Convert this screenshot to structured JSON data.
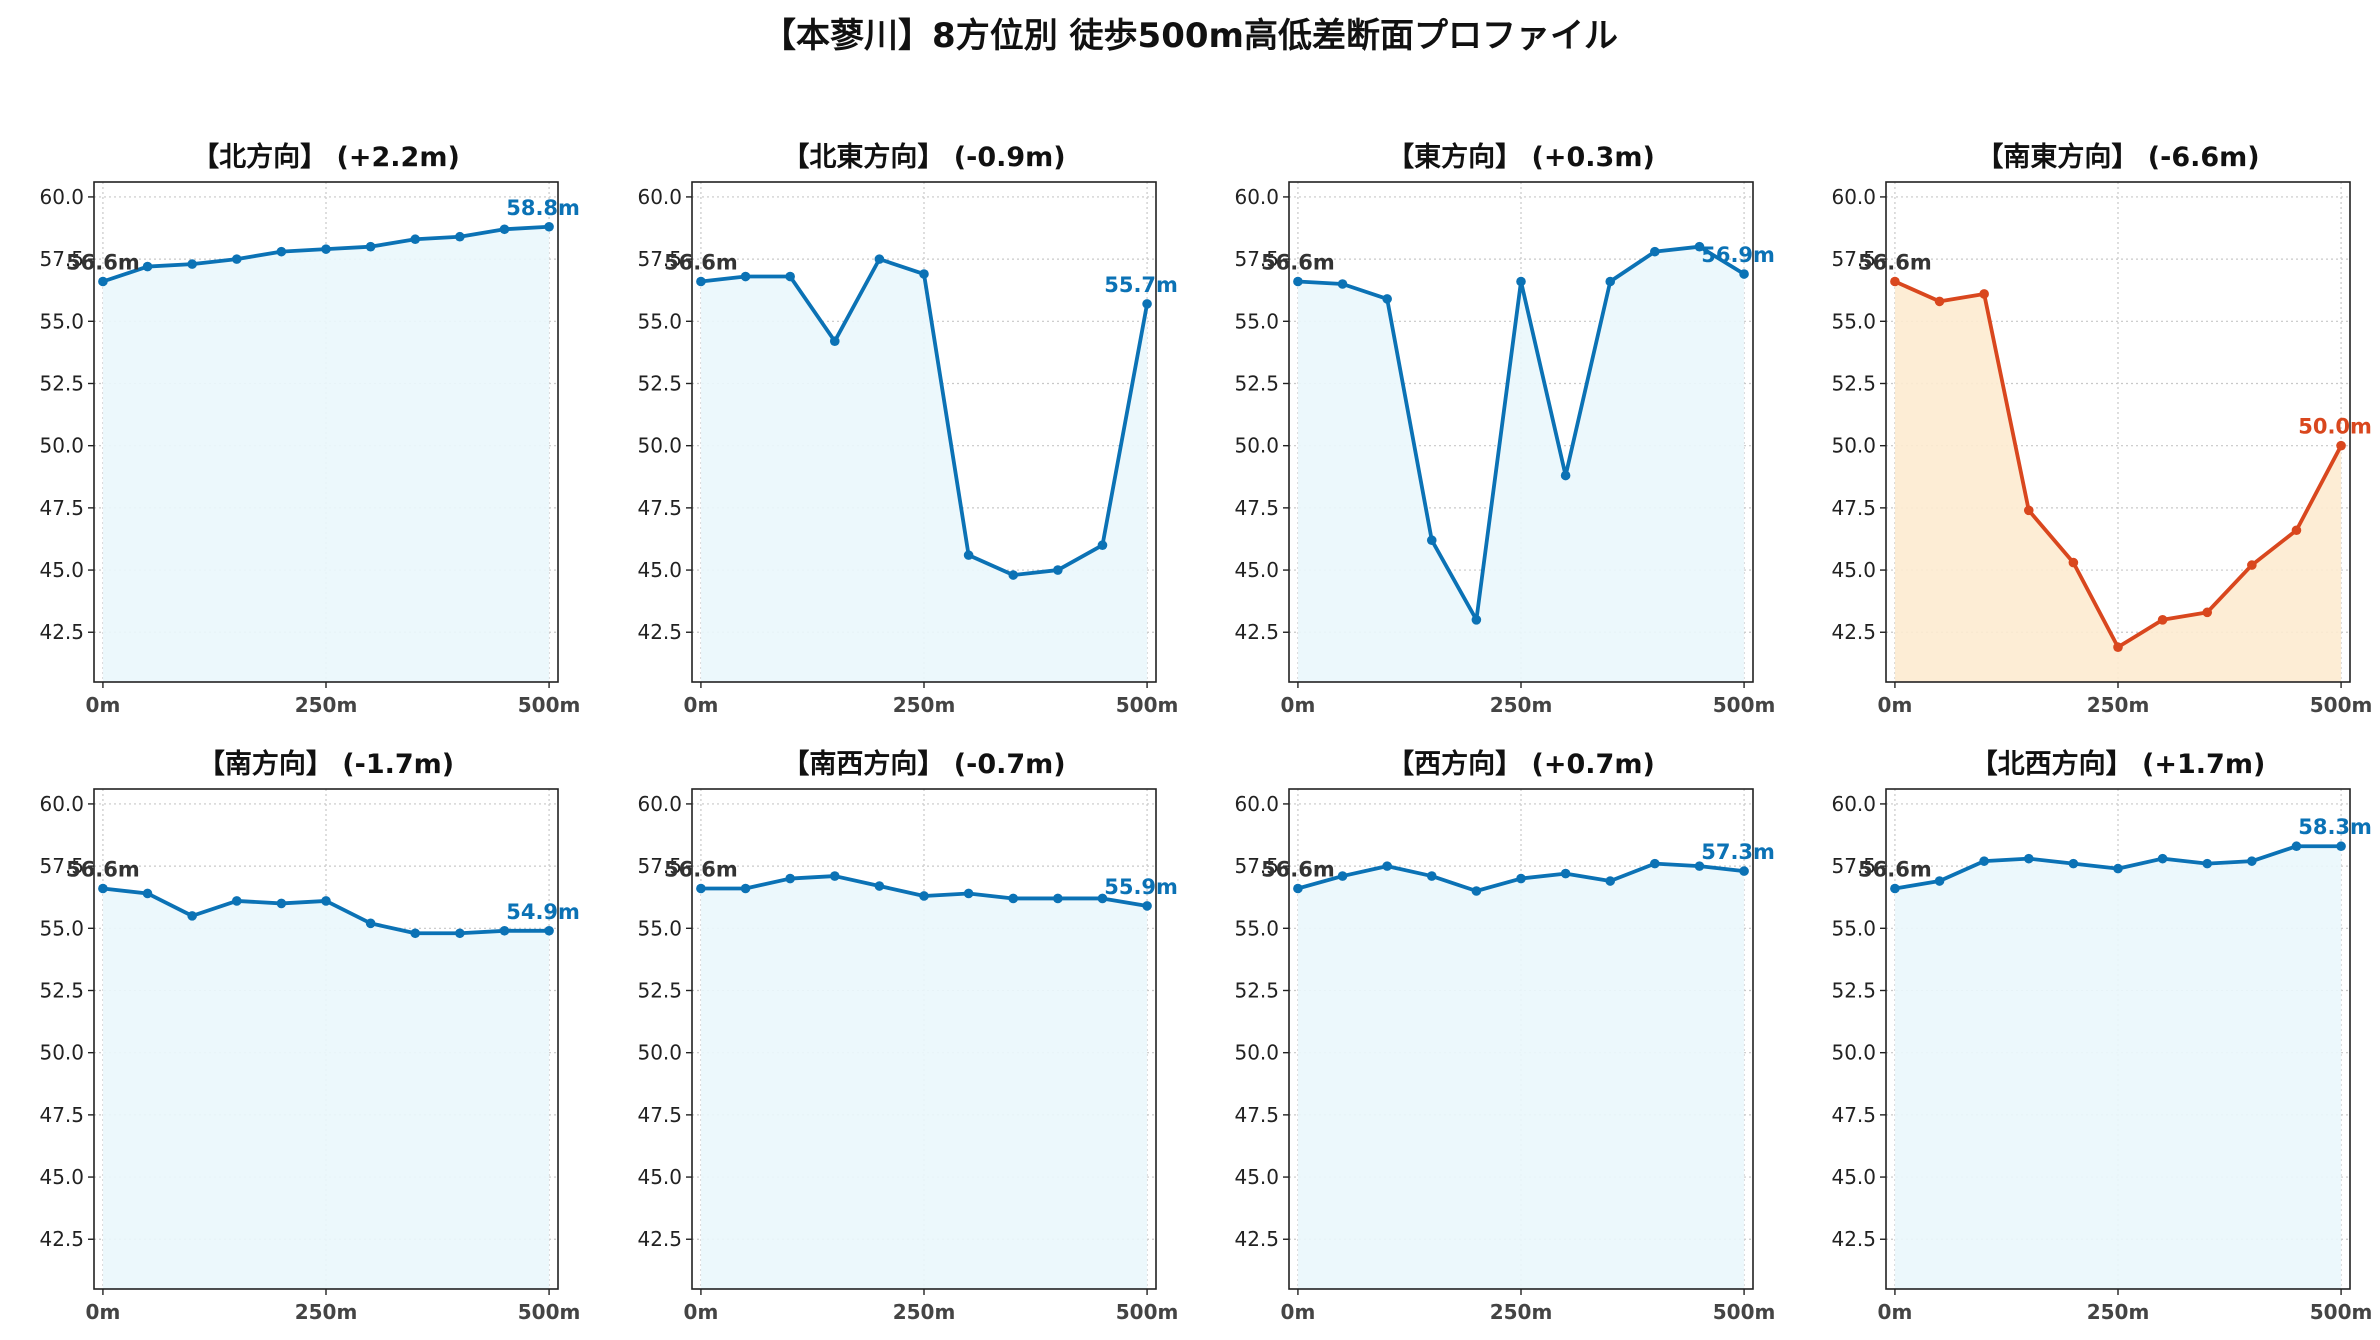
{
  "title": "【本蓼川】8方位別 徒歩500m高低差断面プロファイル",
  "colors": {
    "normal_line": "#0b72b5",
    "normal_fill": "#eaf7fc",
    "alert_line": "#d9471e",
    "alert_fill": "#fdebd0",
    "grid": "#c8c8c8"
  },
  "chart_data": [
    {
      "type": "area",
      "title": "【北方向】 (+2.2m)",
      "x": [
        0,
        50,
        100,
        150,
        200,
        250,
        300,
        350,
        400,
        450,
        500
      ],
      "y": [
        56.6,
        57.2,
        57.3,
        57.5,
        57.8,
        57.9,
        58.0,
        58.3,
        58.4,
        58.7,
        58.8
      ],
      "xticks": [
        0,
        250,
        500
      ],
      "xtick_labels": [
        "0m",
        "250m",
        "500m"
      ],
      "yticks": [
        42.5,
        45.0,
        47.5,
        50.0,
        52.5,
        55.0,
        57.5,
        60.0
      ],
      "ytick_labels": [
        "42.5",
        "45.0",
        "47.5",
        "50.0",
        "52.5",
        "55.0",
        "57.5",
        "60.0"
      ],
      "ylim": [
        40.5,
        60.6
      ],
      "xlim": [
        -10,
        510
      ],
      "start_label": "56.6m",
      "end_label": "58.8m",
      "highlight": false,
      "grid": true
    },
    {
      "type": "area",
      "title": "【北東方向】 (-0.9m)",
      "x": [
        0,
        50,
        100,
        150,
        200,
        250,
        300,
        350,
        400,
        450,
        500
      ],
      "y": [
        56.6,
        56.8,
        56.8,
        54.2,
        57.5,
        56.9,
        45.6,
        44.8,
        45.0,
        46.0,
        55.7
      ],
      "xticks": [
        0,
        250,
        500
      ],
      "xtick_labels": [
        "0m",
        "250m",
        "500m"
      ],
      "yticks": [
        42.5,
        45.0,
        47.5,
        50.0,
        52.5,
        55.0,
        57.5,
        60.0
      ],
      "ytick_labels": [
        "42.5",
        "45.0",
        "47.5",
        "50.0",
        "52.5",
        "55.0",
        "57.5",
        "60.0"
      ],
      "ylim": [
        40.5,
        60.6
      ],
      "xlim": [
        -10,
        510
      ],
      "start_label": "56.6m",
      "end_label": "55.7m",
      "highlight": false,
      "grid": true
    },
    {
      "type": "area",
      "title": "【東方向】 (+0.3m)",
      "x": [
        0,
        50,
        100,
        150,
        200,
        250,
        300,
        350,
        400,
        450,
        500
      ],
      "y": [
        56.6,
        56.5,
        55.9,
        46.2,
        43.0,
        56.6,
        48.8,
        56.6,
        57.8,
        58.0,
        56.9
      ],
      "xticks": [
        0,
        250,
        500
      ],
      "xtick_labels": [
        "0m",
        "250m",
        "500m"
      ],
      "yticks": [
        42.5,
        45.0,
        47.5,
        50.0,
        52.5,
        55.0,
        57.5,
        60.0
      ],
      "ytick_labels": [
        "42.5",
        "45.0",
        "47.5",
        "50.0",
        "52.5",
        "55.0",
        "57.5",
        "60.0"
      ],
      "ylim": [
        40.5,
        60.6
      ],
      "xlim": [
        -10,
        510
      ],
      "start_label": "56.6m",
      "end_label": "56.9m",
      "highlight": false,
      "grid": true
    },
    {
      "type": "area",
      "title": "【南東方向】 (-6.6m)",
      "x": [
        0,
        50,
        100,
        150,
        200,
        250,
        300,
        350,
        400,
        450,
        500
      ],
      "y": [
        56.6,
        55.8,
        56.1,
        47.4,
        45.3,
        41.9,
        43.0,
        43.3,
        45.2,
        46.6,
        50.0
      ],
      "xticks": [
        0,
        250,
        500
      ],
      "xtick_labels": [
        "0m",
        "250m",
        "500m"
      ],
      "yticks": [
        42.5,
        45.0,
        47.5,
        50.0,
        52.5,
        55.0,
        57.5,
        60.0
      ],
      "ytick_labels": [
        "42.5",
        "45.0",
        "47.5",
        "50.0",
        "52.5",
        "55.0",
        "57.5",
        "60.0"
      ],
      "ylim": [
        40.5,
        60.6
      ],
      "xlim": [
        -10,
        510
      ],
      "start_label": "56.6m",
      "end_label": "50.0m",
      "highlight": true,
      "grid": true
    },
    {
      "type": "area",
      "title": "【南方向】 (-1.7m)",
      "x": [
        0,
        50,
        100,
        150,
        200,
        250,
        300,
        350,
        400,
        450,
        500
      ],
      "y": [
        56.6,
        56.4,
        55.5,
        56.1,
        56.0,
        56.1,
        55.2,
        54.8,
        54.8,
        54.9,
        54.9
      ],
      "xticks": [
        0,
        250,
        500
      ],
      "xtick_labels": [
        "0m",
        "250m",
        "500m"
      ],
      "yticks": [
        42.5,
        45.0,
        47.5,
        50.0,
        52.5,
        55.0,
        57.5,
        60.0
      ],
      "ytick_labels": [
        "42.5",
        "45.0",
        "47.5",
        "50.0",
        "52.5",
        "55.0",
        "57.5",
        "60.0"
      ],
      "ylim": [
        40.5,
        60.6
      ],
      "xlim": [
        -10,
        510
      ],
      "start_label": "56.6m",
      "end_label": "54.9m",
      "highlight": false,
      "grid": true
    },
    {
      "type": "area",
      "title": "【南西方向】 (-0.7m)",
      "x": [
        0,
        50,
        100,
        150,
        200,
        250,
        300,
        350,
        400,
        450,
        500
      ],
      "y": [
        56.6,
        56.6,
        57.0,
        57.1,
        56.7,
        56.3,
        56.4,
        56.2,
        56.2,
        56.2,
        55.9
      ],
      "xticks": [
        0,
        250,
        500
      ],
      "xtick_labels": [
        "0m",
        "250m",
        "500m"
      ],
      "yticks": [
        42.5,
        45.0,
        47.5,
        50.0,
        52.5,
        55.0,
        57.5,
        60.0
      ],
      "ytick_labels": [
        "42.5",
        "45.0",
        "47.5",
        "50.0",
        "52.5",
        "55.0",
        "57.5",
        "60.0"
      ],
      "ylim": [
        40.5,
        60.6
      ],
      "xlim": [
        -10,
        510
      ],
      "start_label": "56.6m",
      "end_label": "55.9m",
      "highlight": false,
      "grid": true
    },
    {
      "type": "area",
      "title": "【西方向】 (+0.7m)",
      "x": [
        0,
        50,
        100,
        150,
        200,
        250,
        300,
        350,
        400,
        450,
        500
      ],
      "y": [
        56.6,
        57.1,
        57.5,
        57.1,
        56.5,
        57.0,
        57.2,
        56.9,
        57.6,
        57.5,
        57.3
      ],
      "xticks": [
        0,
        250,
        500
      ],
      "xtick_labels": [
        "0m",
        "250m",
        "500m"
      ],
      "yticks": [
        42.5,
        45.0,
        47.5,
        50.0,
        52.5,
        55.0,
        57.5,
        60.0
      ],
      "ytick_labels": [
        "42.5",
        "45.0",
        "47.5",
        "50.0",
        "52.5",
        "55.0",
        "57.5",
        "60.0"
      ],
      "ylim": [
        40.5,
        60.6
      ],
      "xlim": [
        -10,
        510
      ],
      "start_label": "56.6m",
      "end_label": "57.3m",
      "highlight": false,
      "grid": true
    },
    {
      "type": "area",
      "title": "【北西方向】 (+1.7m)",
      "x": [
        0,
        50,
        100,
        150,
        200,
        250,
        300,
        350,
        400,
        450,
        500
      ],
      "y": [
        56.6,
        56.9,
        57.7,
        57.8,
        57.6,
        57.4,
        57.8,
        57.6,
        57.7,
        58.3,
        58.3
      ],
      "xticks": [
        0,
        250,
        500
      ],
      "xtick_labels": [
        "0m",
        "250m",
        "500m"
      ],
      "yticks": [
        42.5,
        45.0,
        47.5,
        50.0,
        52.5,
        55.0,
        57.5,
        60.0
      ],
      "ytick_labels": [
        "42.5",
        "45.0",
        "47.5",
        "50.0",
        "52.5",
        "55.0",
        "57.5",
        "60.0"
      ],
      "ylim": [
        40.5,
        60.6
      ],
      "xlim": [
        -10,
        510
      ],
      "start_label": "56.6m",
      "end_label": "58.3m",
      "highlight": false,
      "grid": true
    }
  ]
}
